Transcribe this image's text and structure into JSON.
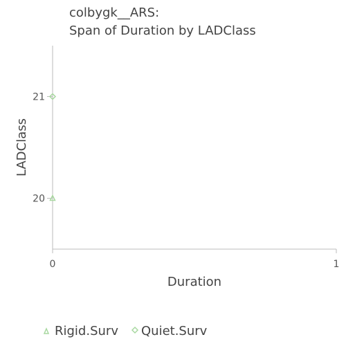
{
  "chart_data": {
    "type": "scatter",
    "title": [
      "colbygk__ARS:",
      "Span of Duration by LADClass"
    ],
    "xlabel": "Duration",
    "ylabel": "LADClass",
    "xlim": [
      0,
      1
    ],
    "ylim": [
      19.5,
      21.5
    ],
    "x_ticks": [
      0,
      1
    ],
    "y_ticks": [
      20,
      21
    ],
    "grid": false,
    "legend_position": "bottom",
    "series": [
      {
        "name": "Rigid.Surv",
        "marker": "triangle",
        "color": "#a8d8a0",
        "points": [
          {
            "x": 0,
            "y": 20
          }
        ]
      },
      {
        "name": "Quiet.Surv",
        "marker": "diamond",
        "color": "#a8d8a0",
        "points": [
          {
            "x": 0,
            "y": 21
          }
        ]
      }
    ]
  }
}
